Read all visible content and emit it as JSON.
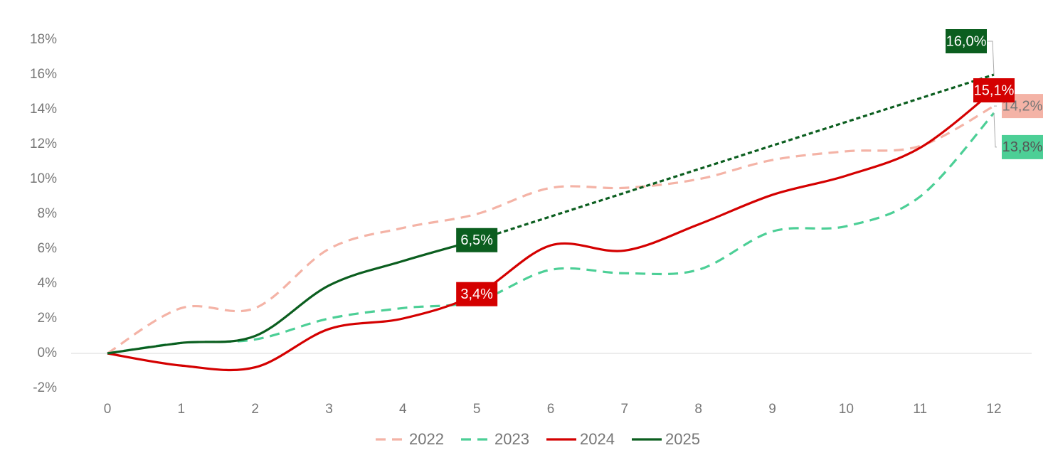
{
  "chart_data": {
    "type": "line",
    "x": [
      0,
      1,
      2,
      3,
      4,
      5,
      6,
      7,
      8,
      9,
      10,
      11,
      12
    ],
    "xlim": [
      0,
      12
    ],
    "xticks": [
      0,
      1,
      2,
      3,
      4,
      5,
      6,
      7,
      8,
      9,
      10,
      11,
      12
    ],
    "ylim": [
      -2,
      18
    ],
    "yticks": [
      {
        "value": -2,
        "label": "-2%"
      },
      {
        "value": 0,
        "label": "0%"
      },
      {
        "value": 2,
        "label": "2%"
      },
      {
        "value": 4,
        "label": "4%"
      },
      {
        "value": 6,
        "label": "6%"
      },
      {
        "value": 8,
        "label": "8%"
      },
      {
        "value": 10,
        "label": "10%"
      },
      {
        "value": 12,
        "label": "12%"
      },
      {
        "value": 14,
        "label": "14%"
      },
      {
        "value": 16,
        "label": "16%"
      },
      {
        "value": 18,
        "label": "18%"
      }
    ],
    "grid": false,
    "legend": "bottom",
    "series": [
      {
        "name": "2022",
        "color": "#f4b3a6",
        "dash": "dashed",
        "values": [
          0,
          2.6,
          2.6,
          6.0,
          7.2,
          8.0,
          9.5,
          9.5,
          10.0,
          11.1,
          11.6,
          11.9,
          14.2
        ],
        "value_labels": [
          null,
          null,
          null,
          null,
          null,
          null,
          null,
          null,
          null,
          null,
          null,
          null,
          "14,2%"
        ]
      },
      {
        "name": "2023",
        "color": "#4ccf96",
        "dash": "dashed",
        "values": [
          0,
          0.6,
          0.8,
          2.0,
          2.6,
          3.0,
          4.8,
          4.6,
          4.8,
          7.0,
          7.3,
          9.0,
          13.8
        ],
        "value_labels": [
          null,
          null,
          null,
          null,
          null,
          null,
          null,
          null,
          null,
          null,
          null,
          null,
          "13,8%"
        ]
      },
      {
        "name": "2024",
        "color": "#d40000",
        "dash": "solid",
        "values": [
          0,
          -0.7,
          -0.8,
          1.4,
          2.0,
          3.4,
          6.2,
          5.9,
          7.4,
          9.1,
          10.2,
          11.8,
          15.1
        ],
        "value_labels": [
          null,
          null,
          null,
          null,
          null,
          "3,4%",
          null,
          null,
          null,
          null,
          null,
          null,
          "15,1%"
        ]
      },
      {
        "name": "2025",
        "color": "#0b5e1f",
        "dash": "solid",
        "values": [
          0,
          0.6,
          1.0,
          3.9,
          5.3,
          6.5,
          null,
          null,
          null,
          null,
          null,
          null,
          16.0
        ],
        "value_labels": [
          null,
          null,
          null,
          null,
          null,
          "6,5%",
          null,
          null,
          null,
          null,
          null,
          null,
          "16,0%"
        ]
      }
    ]
  }
}
